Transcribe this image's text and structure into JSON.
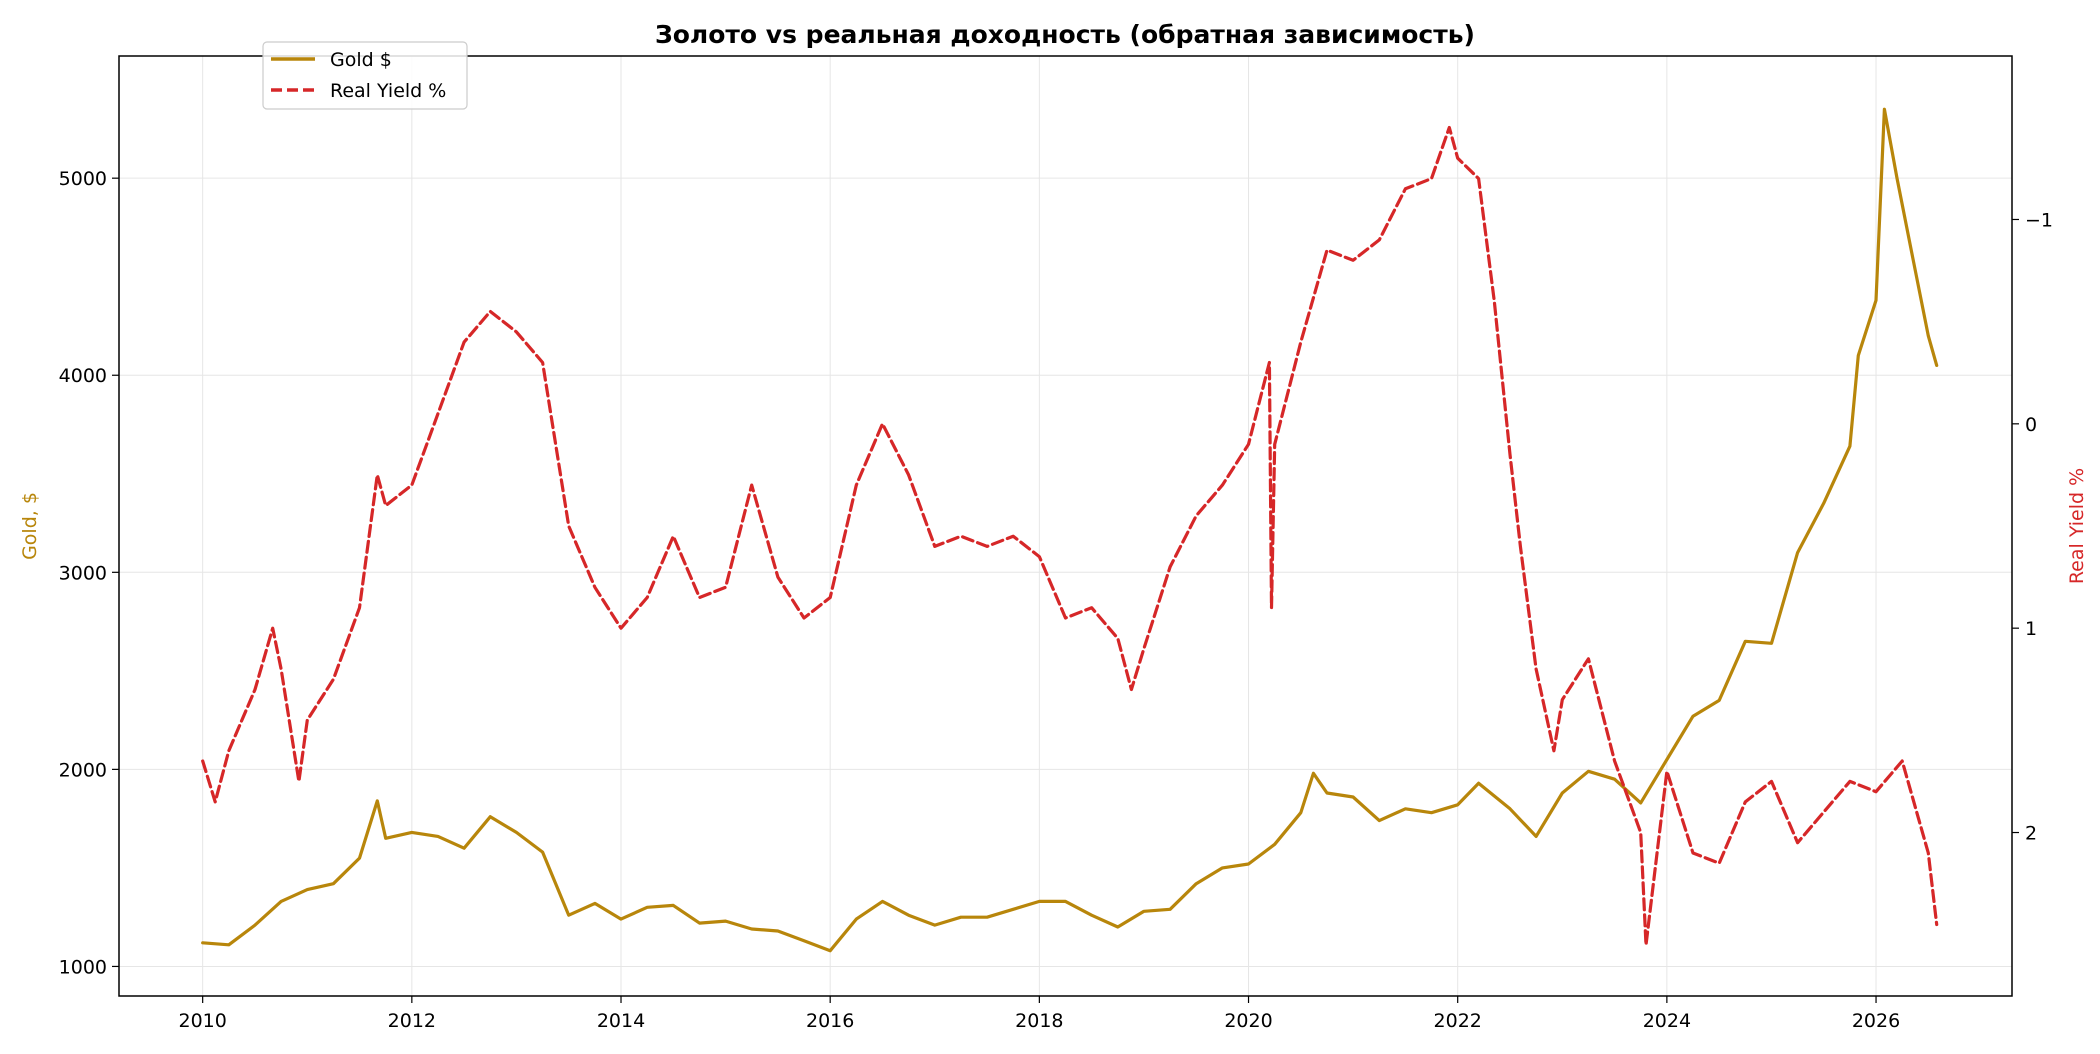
{
  "chart_data": {
    "type": "line",
    "title": "Золото vs реальная доходность (обратная зависимость)",
    "xlabel": "",
    "ylabel": "Gold, $",
    "y2label": "Real Yield %",
    "x_range": [
      2009.2,
      2027.3
    ],
    "x_ticks": [
      "2010",
      "2012",
      "2014",
      "2016",
      "2018",
      "2020",
      "2022",
      "2024",
      "2026"
    ],
    "ylim": [
      850,
      5620
    ],
    "y_ticks": [
      "1000",
      "2000",
      "3000",
      "4000",
      "5000"
    ],
    "y2lim": [
      2.8,
      -1.8
    ],
    "y2_inverted": true,
    "y2_ticks": [
      "−1",
      "0",
      "1",
      "2"
    ],
    "y2_tick_values": [
      -1,
      0,
      1,
      2
    ],
    "grid": true,
    "legend_position": "top-left",
    "colors": {
      "gold": "#b8860b",
      "real_yield": "#d62728",
      "gold_axis_label": "#b8860b",
      "yield_axis_label": "#d62728"
    },
    "series": [
      {
        "name": "Gold $",
        "axis": "left",
        "style": "solid",
        "x": [
          2010.0,
          2010.25,
          2010.5,
          2010.75,
          2011.0,
          2011.25,
          2011.5,
          2011.67,
          2011.75,
          2012.0,
          2012.25,
          2012.5,
          2012.75,
          2013.0,
          2013.25,
          2013.5,
          2013.75,
          2014.0,
          2014.25,
          2014.5,
          2014.75,
          2015.0,
          2015.25,
          2015.5,
          2015.75,
          2016.0,
          2016.25,
          2016.5,
          2016.75,
          2017.0,
          2017.25,
          2017.5,
          2017.75,
          2018.0,
          2018.25,
          2018.5,
          2018.75,
          2019.0,
          2019.25,
          2019.5,
          2019.75,
          2020.0,
          2020.25,
          2020.5,
          2020.62,
          2020.75,
          2021.0,
          2021.25,
          2021.5,
          2021.75,
          2022.0,
          2022.2,
          2022.5,
          2022.75,
          2023.0,
          2023.25,
          2023.5,
          2023.75,
          2024.0,
          2024.25,
          2024.5,
          2024.75,
          2025.0,
          2025.25,
          2025.5,
          2025.75,
          2025.83,
          2026.0,
          2026.08,
          2026.2,
          2026.35,
          2026.5,
          2026.58
        ],
        "y": [
          1120,
          1110,
          1210,
          1330,
          1390,
          1420,
          1550,
          1840,
          1650,
          1680,
          1660,
          1600,
          1760,
          1680,
          1580,
          1260,
          1320,
          1240,
          1300,
          1310,
          1220,
          1230,
          1190,
          1180,
          1130,
          1080,
          1240,
          1330,
          1260,
          1210,
          1250,
          1250,
          1290,
          1330,
          1330,
          1260,
          1200,
          1280,
          1290,
          1420,
          1500,
          1520,
          1620,
          1780,
          1980,
          1880,
          1860,
          1740,
          1800,
          1780,
          1820,
          1930,
          1800,
          1660,
          1880,
          1990,
          1950,
          1830,
          2050,
          2270,
          2350,
          2650,
          2640,
          3100,
          3350,
          3640,
          4100,
          4380,
          5350,
          5000,
          4600,
          4200,
          4050
        ]
      },
      {
        "name": "Real Yield %",
        "axis": "right",
        "style": "dashed",
        "x": [
          2010.0,
          2010.12,
          2010.25,
          2010.5,
          2010.67,
          2010.75,
          2010.92,
          2011.0,
          2011.25,
          2011.5,
          2011.67,
          2011.75,
          2012.0,
          2012.25,
          2012.5,
          2012.75,
          2013.0,
          2013.25,
          2013.5,
          2013.75,
          2014.0,
          2014.25,
          2014.5,
          2014.75,
          2015.0,
          2015.25,
          2015.5,
          2015.75,
          2016.0,
          2016.25,
          2016.5,
          2016.75,
          2017.0,
          2017.25,
          2017.5,
          2017.75,
          2018.0,
          2018.25,
          2018.5,
          2018.75,
          2018.88,
          2019.0,
          2019.25,
          2019.5,
          2019.75,
          2020.0,
          2020.2,
          2020.22,
          2020.25,
          2020.5,
          2020.75,
          2021.0,
          2021.25,
          2021.5,
          2021.75,
          2021.92,
          2022.0,
          2022.2,
          2022.35,
          2022.5,
          2022.6,
          2022.75,
          2022.92,
          2023.0,
          2023.25,
          2023.5,
          2023.75,
          2023.8,
          2024.0,
          2024.25,
          2024.5,
          2024.75,
          2025.0,
          2025.25,
          2025.5,
          2025.75,
          2026.0,
          2026.25,
          2026.5,
          2026.58
        ],
        "y": [
          1.65,
          1.85,
          1.6,
          1.3,
          1.0,
          1.2,
          1.75,
          1.45,
          1.25,
          0.9,
          0.25,
          0.4,
          0.3,
          -0.05,
          -0.4,
          -0.55,
          -0.45,
          -0.3,
          0.5,
          0.8,
          1.0,
          0.85,
          0.55,
          0.85,
          0.8,
          0.3,
          0.75,
          0.95,
          0.85,
          0.3,
          0.0,
          0.25,
          0.6,
          0.55,
          0.6,
          0.55,
          0.65,
          0.95,
          0.9,
          1.05,
          1.3,
          1.1,
          0.7,
          0.45,
          0.3,
          0.1,
          -0.3,
          0.9,
          0.1,
          -0.4,
          -0.85,
          -0.8,
          -0.9,
          -1.15,
          -1.2,
          -1.45,
          -1.3,
          -1.2,
          -0.6,
          0.15,
          0.6,
          1.2,
          1.6,
          1.35,
          1.15,
          1.65,
          2.0,
          2.55,
          1.7,
          2.1,
          2.15,
          1.85,
          1.75,
          2.05,
          1.9,
          1.75,
          1.8,
          1.65,
          2.1,
          2.45
        ]
      }
    ]
  }
}
